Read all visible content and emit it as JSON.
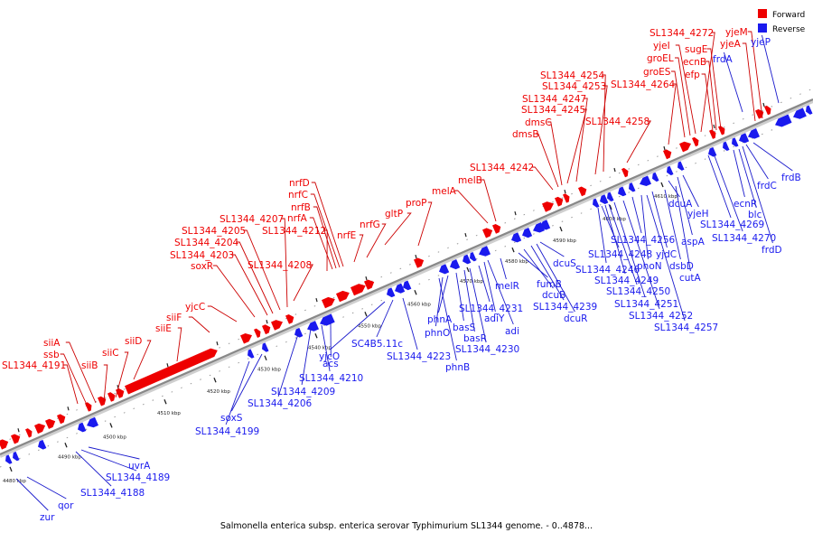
{
  "caption": "Salmonella enterica subsp. enterica serovar Typhimurium SL1344 genome. - 0..4878...",
  "legend": [
    {
      "label": "Forward",
      "color": "#ee0000"
    },
    {
      "label": "Reverse",
      "color": "#1a1aee"
    }
  ],
  "strand_colors": {
    "forward": "#ee0000",
    "reverse": "#1a1aee",
    "backbone": "#888888",
    "leader_fwd": "#cc0000",
    "leader_rev": "#1a1acc"
  },
  "scale_ticks": [
    "4480 kbp",
    "4490 kbp",
    "4500 kbp",
    "4510 kbp",
    "4520 kbp",
    "4530 kbp",
    "4540 kbp",
    "4550 kbp",
    "4560 kbp",
    "4570 kbp",
    "4580 kbp",
    "4590 kbp",
    "4600 kbp",
    "4610 kbp"
  ],
  "forward_labels": [
    "SL1344_4191",
    "ssb",
    "siiA",
    "siiB",
    "siiC",
    "siiD",
    "siiE",
    "siiF",
    "yjcC",
    "soxR",
    "SL1344_4203",
    "SL1344_4204",
    "SL1344_4205",
    "SL1344_4207",
    "SL1344_4208",
    "SL1344_4212",
    "nrfA",
    "nrfB",
    "nrfC",
    "nrfD",
    "nrfE",
    "nrfG",
    "gltP",
    "proP",
    "melA",
    "melB",
    "SL1344_4242",
    "dmsB",
    "dmsC",
    "SL1344_4245",
    "SL1344_4247",
    "SL1344_4253",
    "SL1344_4254",
    "SL1344_4258",
    "SL1344_4264",
    "groES",
    "groEL",
    "yjeI",
    "SL1344_4272",
    "efp",
    "ecnB",
    "sugE",
    "yjeA",
    "yjeM"
  ],
  "reverse_labels": [
    "zur",
    "qor",
    "SL1344_4188",
    "SL1344_4189",
    "uvrA",
    "SL1344_4199",
    "soxS",
    "SL1344_4206",
    "SL1344_4209",
    "SL1344_4210",
    "acs",
    "yjcO",
    "SC4B5.11c",
    "SL1344_4223",
    "phnB",
    "phnO",
    "phnA",
    "basS",
    "basR",
    "SL1344_4230",
    "SL1344_4231",
    "adiY",
    "adi",
    "melR",
    "fumB",
    "dcuB",
    "SL1344_4239",
    "dcuR",
    "dcuS",
    "SL1344_4246",
    "SL1344_4248",
    "SL1344_4249",
    "SL1344_4250",
    "SL1344_4251",
    "SL1344_4252",
    "SL1344_4256",
    "SL1344_4257",
    "phoN",
    "yjdC",
    "dsbD",
    "cutA",
    "dcuA",
    "aspA",
    "yjeH",
    "SL1344_4269",
    "SL1344_4270",
    "ecnR",
    "blc",
    "frdD",
    "frdC",
    "frdB",
    "frdA",
    "yjeP"
  ]
}
